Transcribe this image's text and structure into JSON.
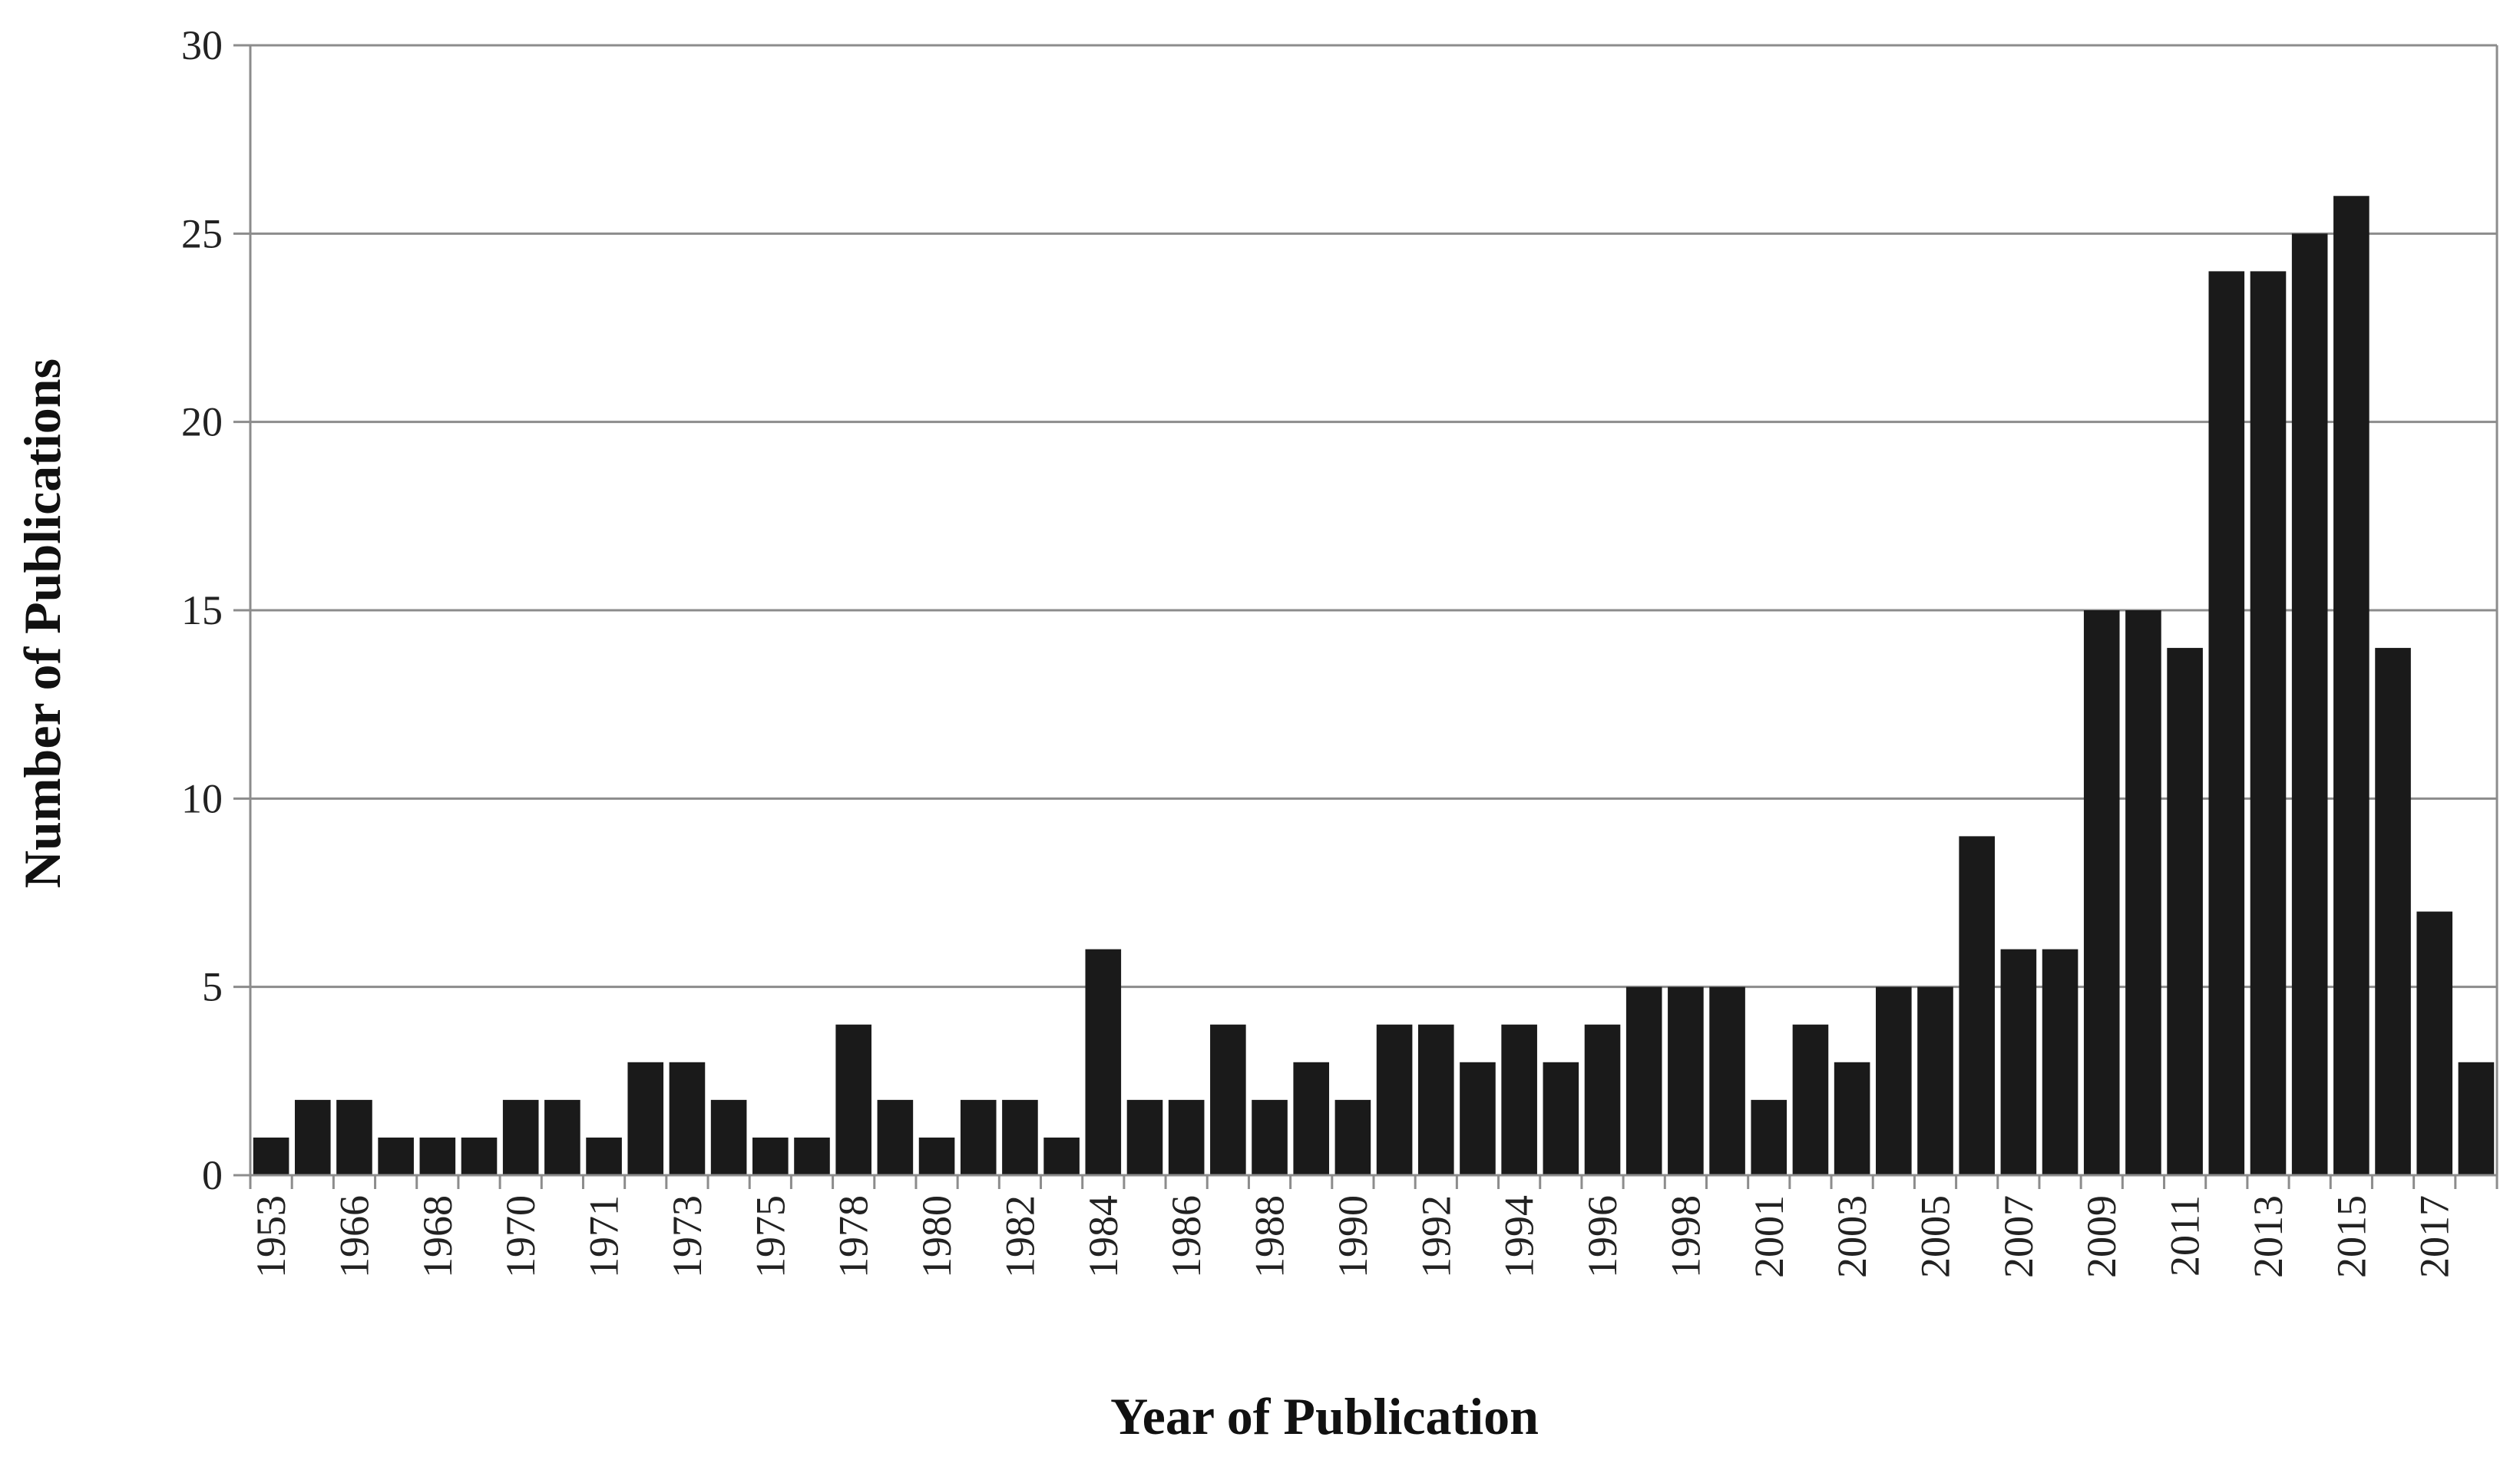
{
  "chart_data": {
    "type": "bar",
    "xlabel": "Year of Publication",
    "ylabel": "Number of Publications",
    "ylim": [
      0,
      30
    ],
    "yticks": [
      0,
      5,
      10,
      15,
      20,
      25,
      30
    ],
    "grid": true,
    "bar_color": "#1a1a1a",
    "categories": [
      "1953",
      "",
      "1966",
      "",
      "1968",
      "",
      "1970",
      "",
      "1971",
      "",
      "1973",
      "",
      "1975",
      "",
      "1978",
      "",
      "1980",
      "",
      "1982",
      "",
      "1984",
      "",
      "1986",
      "",
      "1988",
      "",
      "1990",
      "",
      "1992",
      "",
      "1994",
      "",
      "1996",
      "",
      "1998",
      "",
      "2001",
      "",
      "2003",
      "",
      "2005",
      "",
      "2007",
      "",
      "2009",
      "",
      "2011",
      "",
      "2013",
      "",
      "2015",
      "",
      "2017",
      ""
    ],
    "values": [
      1,
      2,
      2,
      1,
      1,
      1,
      2,
      2,
      1,
      3,
      3,
      2,
      1,
      1,
      4,
      2,
      1,
      2,
      2,
      1,
      6,
      2,
      2,
      4,
      2,
      3,
      2,
      4,
      4,
      3,
      4,
      3,
      4,
      5,
      5,
      5,
      2,
      4,
      3,
      5,
      5,
      9,
      6,
      6,
      15,
      15,
      14,
      24,
      24,
      25,
      26,
      14,
      7,
      3
    ]
  }
}
